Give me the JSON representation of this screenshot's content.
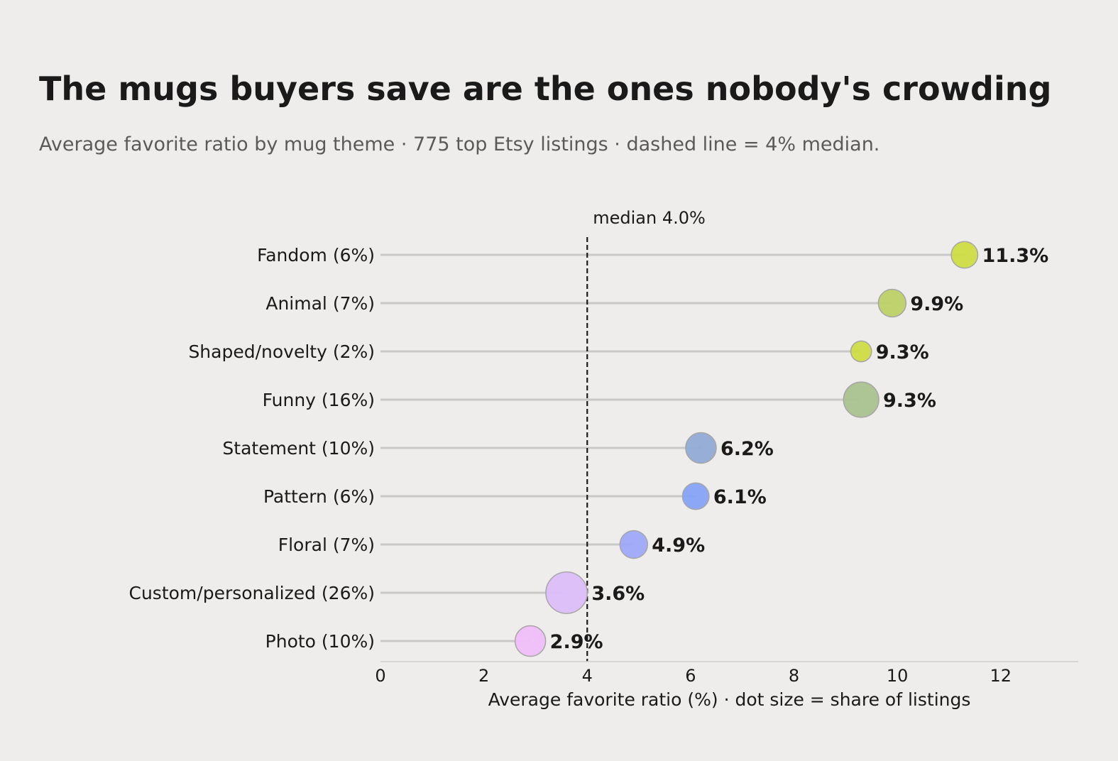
{
  "chart_data": {
    "type": "scatter",
    "title": "The mugs buyers save are the ones nobody's crowding",
    "subtitle": "Average favorite ratio by mug theme · 775 top Etsy listings · dashed line = 4% median.",
    "xlabel": "Average favorite ratio (%)  ·  dot size = share of listings",
    "xlim": [
      0,
      13.5
    ],
    "xticks": [
      "0",
      "2",
      "4",
      "6",
      "8",
      "10",
      "12"
    ],
    "median": {
      "value": 4.0,
      "label": "median 4.0%"
    },
    "grid": false,
    "points": [
      {
        "category": "Fandom",
        "category_label": "Fandom  (6%)",
        "value": 11.3,
        "value_label": "11.3%",
        "share": 6,
        "color": "#cddc45"
      },
      {
        "category": "Animal",
        "category_label": "Animal  (7%)",
        "value": 9.9,
        "value_label": "9.9%",
        "share": 7,
        "color": "#bcd166"
      },
      {
        "category": "Shaped/novelty",
        "category_label": "Shaped/novelty  (2%)",
        "value": 9.3,
        "value_label": "9.3%",
        "share": 2,
        "color": "#cddc45"
      },
      {
        "category": "Funny",
        "category_label": "Funny  (16%)",
        "value": 9.3,
        "value_label": "9.3%",
        "share": 16,
        "color": "#a9c38f"
      },
      {
        "category": "Statement",
        "category_label": "Statement  (10%)",
        "value": 6.2,
        "value_label": "6.2%",
        "share": 10,
        "color": "#91acd6"
      },
      {
        "category": "Pattern",
        "category_label": "Pattern  (6%)",
        "value": 6.1,
        "value_label": "6.1%",
        "share": 6,
        "color": "#85a3f5"
      },
      {
        "category": "Floral",
        "category_label": "Floral  (7%)",
        "value": 4.9,
        "value_label": "4.9%",
        "share": 7,
        "color": "#9da9fa"
      },
      {
        "category": "Custom/personalized",
        "category_label": "Custom/personalized  (26%)",
        "value": 3.6,
        "value_label": "3.6%",
        "share": 26,
        "color": "#dcbefa"
      },
      {
        "category": "Photo",
        "category_label": "Photo  (10%)",
        "value": 2.9,
        "value_label": "2.9%",
        "share": 10,
        "color": "#efbefa"
      }
    ]
  }
}
